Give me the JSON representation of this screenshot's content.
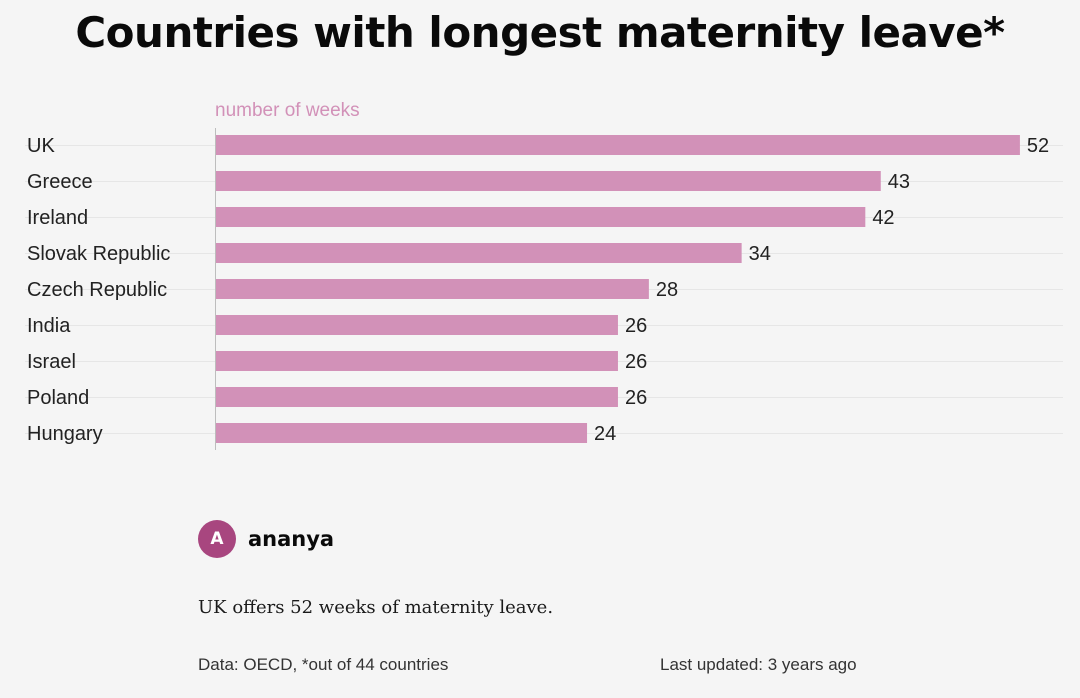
{
  "title": "Countries with longest maternity leave*",
  "chart_data": {
    "type": "bar",
    "orientation": "horizontal",
    "unit_label": "number of weeks",
    "categories": [
      "UK",
      "Greece",
      "Ireland",
      "Slovak Republic",
      "Czech Republic",
      "India",
      "Israel",
      "Poland",
      "Hungary"
    ],
    "values": [
      52,
      43,
      42,
      34,
      28,
      26,
      26,
      26,
      24
    ],
    "xlim": [
      0,
      55
    ],
    "bar_color": "#d291b8",
    "grid": true
  },
  "author": {
    "initial": "A",
    "name": "ananya",
    "avatar_color": "#a8467f"
  },
  "description": "UK offers 52 weeks of maternity leave.",
  "footer": {
    "source": "Data: OECD, *out of 44 countries",
    "updated": "Last updated: 3 years ago"
  }
}
